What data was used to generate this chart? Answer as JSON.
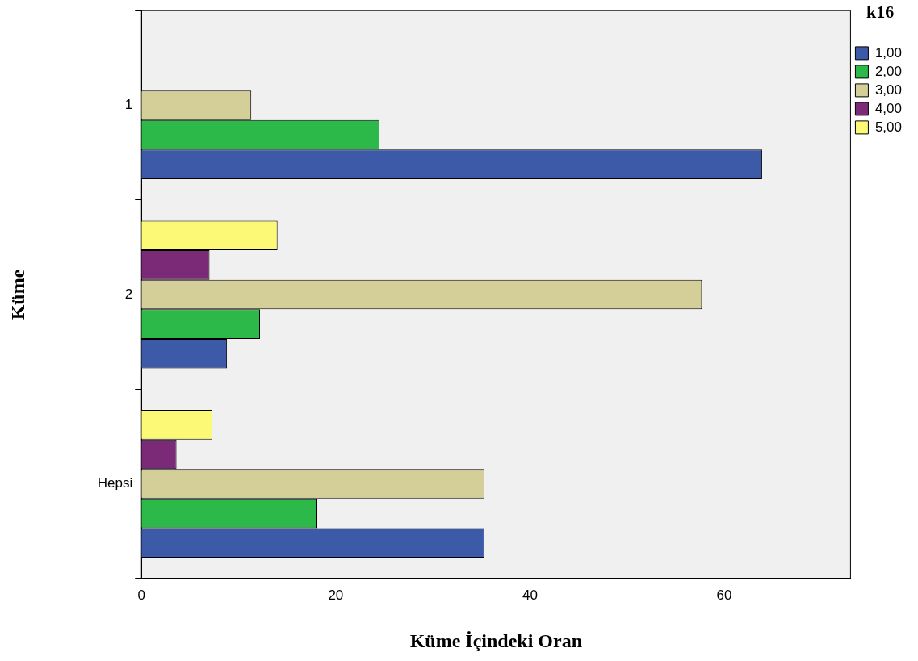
{
  "chart_data": {
    "type": "bar",
    "orientation": "horizontal",
    "xlabel": "Küme İçindeki Oran",
    "ylabel": "Küme",
    "legend_title": "k16",
    "legend": "top right",
    "grid": false,
    "categories": [
      "1",
      "2",
      "Hepsi"
    ],
    "xlim": [
      0,
      73
    ],
    "xticks": [
      0,
      20,
      40,
      60
    ],
    "series": [
      {
        "name": "1,00",
        "color": "#3d5aa8",
        "values": [
          63.9,
          8.8,
          35.3
        ]
      },
      {
        "name": "2,00",
        "color": "#2db84a",
        "values": [
          24.5,
          12.2,
          18.1
        ]
      },
      {
        "name": "3,00",
        "color": "#d4cf98",
        "values": [
          11.3,
          57.7,
          35.3
        ]
      },
      {
        "name": "4,00",
        "color": "#7b2a78",
        "values": [
          0,
          7.0,
          3.6
        ]
      },
      {
        "name": "5,00",
        "color": "#fbf975",
        "values": [
          0,
          14.0,
          7.3
        ]
      }
    ]
  }
}
